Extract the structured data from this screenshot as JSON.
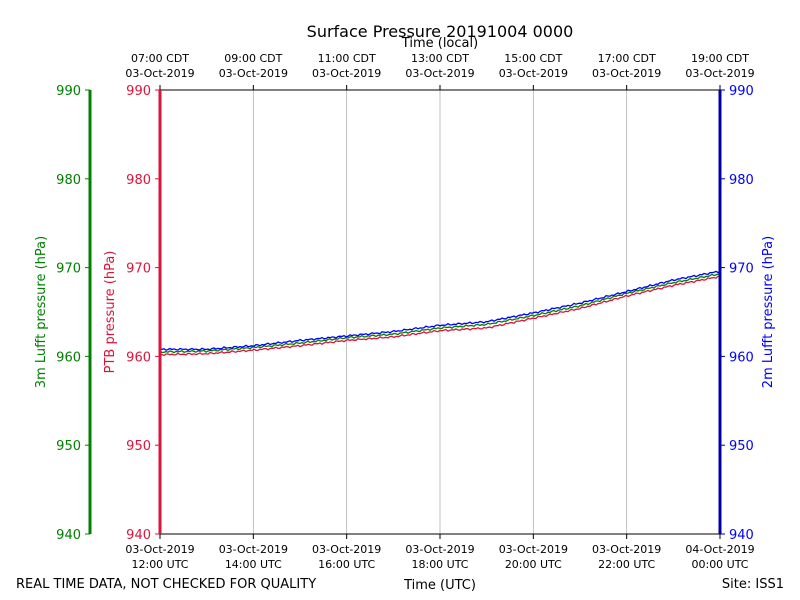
{
  "chart_data": {
    "type": "line",
    "title": "Surface Pressure 20191004 0000",
    "top_axis_title": "Time (local)",
    "xlabel": "Time (UTC)",
    "xlim_hours_utc": [
      12,
      24
    ],
    "grid": "vertical",
    "bottom_ticks": [
      {
        "hour": 12,
        "date": "03-Oct-2019",
        "time": "12:00 UTC"
      },
      {
        "hour": 14,
        "date": "03-Oct-2019",
        "time": "14:00 UTC"
      },
      {
        "hour": 16,
        "date": "03-Oct-2019",
        "time": "16:00 UTC"
      },
      {
        "hour": 18,
        "date": "03-Oct-2019",
        "time": "18:00 UTC"
      },
      {
        "hour": 20,
        "date": "03-Oct-2019",
        "time": "20:00 UTC"
      },
      {
        "hour": 22,
        "date": "03-Oct-2019",
        "time": "22:00 UTC"
      },
      {
        "hour": 24,
        "date": "04-Oct-2019",
        "time": "00:00 UTC"
      }
    ],
    "top_ticks": [
      {
        "hour": 12,
        "time": "07:00 CDT",
        "date": "03-Oct-2019"
      },
      {
        "hour": 14,
        "time": "09:00 CDT",
        "date": "03-Oct-2019"
      },
      {
        "hour": 16,
        "time": "11:00 CDT",
        "date": "03-Oct-2019"
      },
      {
        "hour": 18,
        "time": "13:00 CDT",
        "date": "03-Oct-2019"
      },
      {
        "hour": 20,
        "time": "15:00 CDT",
        "date": "03-Oct-2019"
      },
      {
        "hour": 22,
        "time": "17:00 CDT",
        "date": "03-Oct-2019"
      },
      {
        "hour": 24,
        "time": "19:00 CDT",
        "date": "03-Oct-2019"
      }
    ],
    "y_axes": [
      {
        "id": "lufft3m",
        "label": "3m Lufft pressure (hPa)",
        "color": "#008000",
        "ylim": [
          940,
          990
        ],
        "ticks": [
          "940",
          "950",
          "960",
          "970",
          "980",
          "990"
        ]
      },
      {
        "id": "ptb",
        "label": "PTB pressure (hPa)",
        "color": "#dc143c",
        "ylim": [
          940,
          990
        ],
        "ticks": [
          "940",
          "950",
          "960",
          "970",
          "980",
          "990"
        ]
      },
      {
        "id": "lufft2m",
        "label": "2m Lufft pressure (hPa)",
        "color": "#0000ff",
        "ylim": [
          940,
          990
        ],
        "ticks": [
          "940",
          "950",
          "960",
          "970",
          "980",
          "990"
        ]
      }
    ],
    "series": [
      {
        "name": "PTB pressure",
        "axis": "ptb",
        "color": "#dc143c",
        "x": [
          12,
          13,
          14,
          15,
          16,
          17,
          18,
          19,
          20,
          21,
          22,
          23,
          24
        ],
        "values": [
          960.2,
          960.3,
          960.7,
          961.2,
          961.8,
          962.2,
          962.9,
          963.2,
          964.3,
          965.4,
          966.8,
          968.0,
          969.0
        ]
      },
      {
        "name": "3m Lufft pressure",
        "axis": "lufft3m",
        "color": "#008000",
        "x": [
          12,
          13,
          14,
          15,
          16,
          17,
          18,
          19,
          20,
          21,
          22,
          23,
          24
        ],
        "values": [
          960.5,
          960.6,
          961.0,
          961.5,
          962.1,
          962.5,
          963.2,
          963.6,
          964.6,
          965.7,
          967.1,
          968.3,
          969.3
        ]
      },
      {
        "name": "2m Lufft pressure",
        "axis": "lufft2m",
        "color": "#0000ff",
        "x": [
          12,
          13,
          14,
          15,
          16,
          17,
          18,
          19,
          20,
          21,
          22,
          23,
          24
        ],
        "values": [
          960.8,
          960.8,
          961.2,
          961.8,
          962.3,
          962.8,
          963.5,
          963.9,
          964.9,
          966.0,
          967.3,
          968.6,
          969.6
        ]
      }
    ]
  },
  "footer": {
    "left": "REAL TIME DATA, NOT CHECKED FOR QUALITY",
    "right": "Site: ISS1"
  }
}
